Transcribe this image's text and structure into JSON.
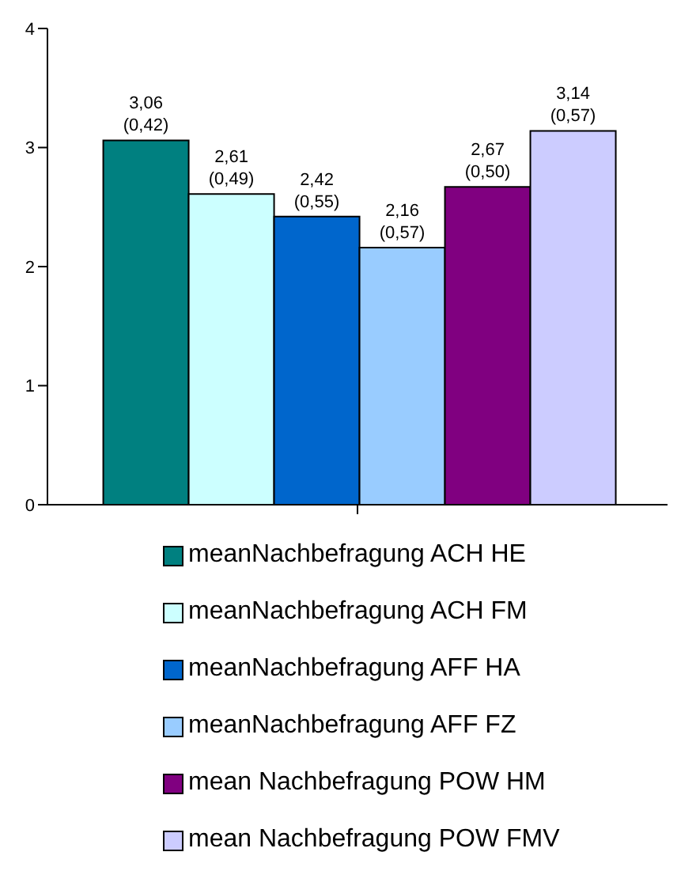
{
  "chart_data": {
    "type": "bar",
    "categories": [
      null
    ],
    "series": [
      {
        "name": "meanNachbefragung ACH HE",
        "color": "#008080",
        "values": [
          3.06
        ],
        "value_labels": [
          "3,06\n(0,42)"
        ]
      },
      {
        "name": "meanNachbefragung ACH FM",
        "color": "#ccffff",
        "values": [
          2.61
        ],
        "value_labels": [
          "2,61\n(0,49)"
        ]
      },
      {
        "name": "meanNachbefragung AFF HA",
        "color": "#0066cc",
        "values": [
          2.42
        ],
        "value_labels": [
          "2,42\n(0,55)"
        ]
      },
      {
        "name": "meanNachbefragung AFF FZ",
        "color": "#99ccff",
        "values": [
          2.16
        ],
        "value_labels": [
          "2,16\n(0,57)"
        ]
      },
      {
        "name": "mean Nachbefragung POW HM",
        "color": "#800080",
        "values": [
          2.67
        ],
        "value_labels": [
          "2,67\n(0,50)"
        ]
      },
      {
        "name": "mean Nachbefragung POW FMV",
        "color": "#ccccff",
        "values": [
          3.14
        ],
        "value_labels": [
          "3,14\n(0,57)"
        ]
      }
    ],
    "ylim": [
      0,
      4
    ],
    "yticks": [
      0,
      1,
      2,
      3,
      4
    ],
    "grid": false,
    "legend": "bottom"
  }
}
